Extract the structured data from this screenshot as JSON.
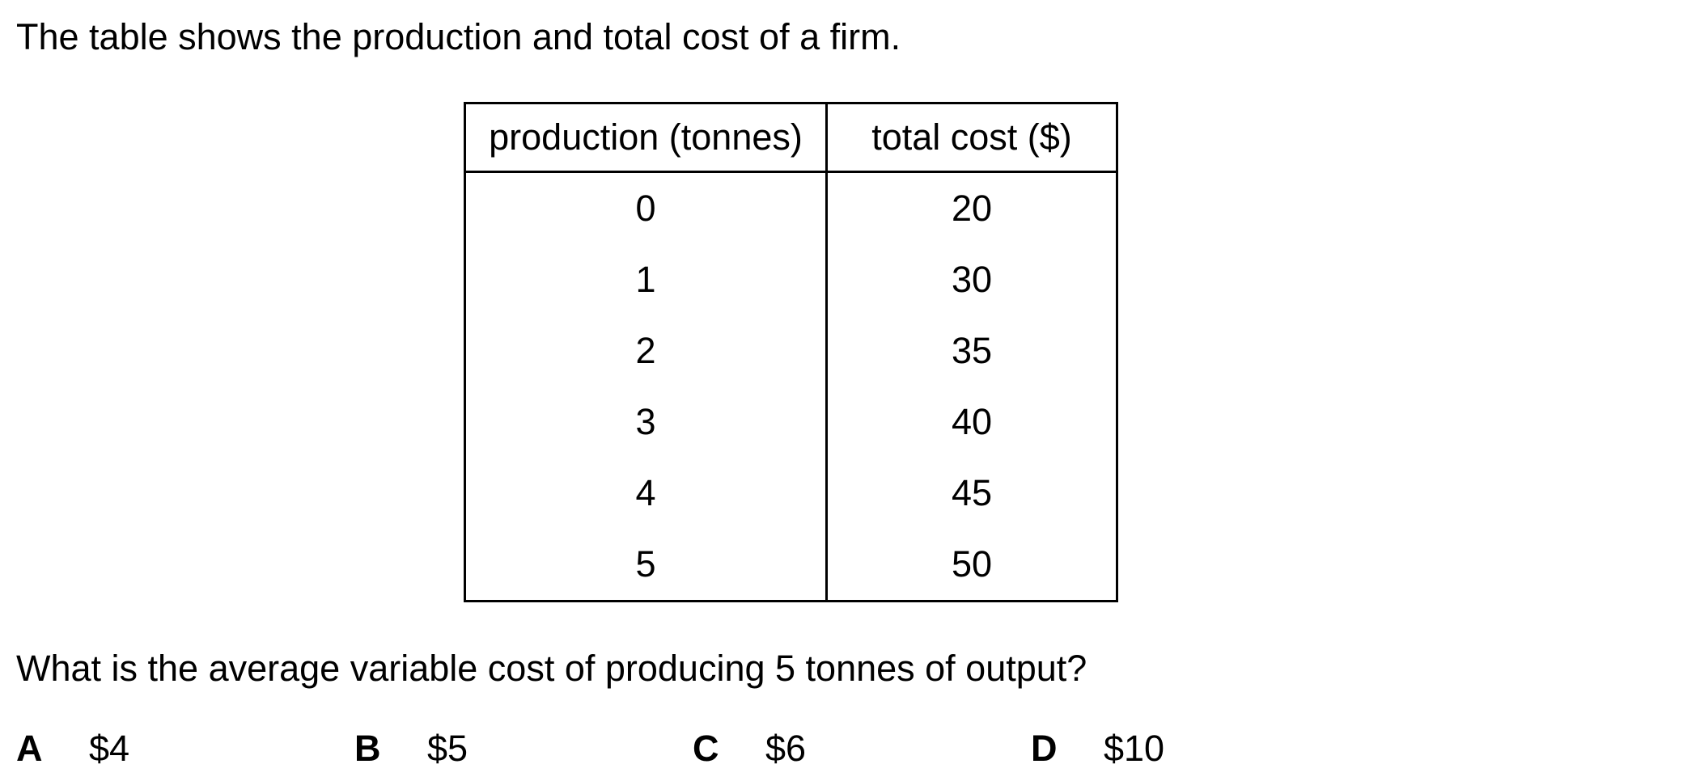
{
  "question": {
    "intro": "The table shows the production and total cost of a firm.",
    "prompt": "What is the average variable cost of producing 5 tonnes of output?"
  },
  "table": {
    "headers": [
      "production (tonnes)",
      "total cost ($)"
    ],
    "rows": [
      [
        "0",
        "20"
      ],
      [
        "1",
        "30"
      ],
      [
        "2",
        "35"
      ],
      [
        "3",
        "40"
      ],
      [
        "4",
        "45"
      ],
      [
        "5",
        "50"
      ]
    ]
  },
  "options": [
    {
      "letter": "A",
      "value": "$4"
    },
    {
      "letter": "B",
      "value": "$5"
    },
    {
      "letter": "C",
      "value": "$6"
    },
    {
      "letter": "D",
      "value": "$10"
    }
  ]
}
